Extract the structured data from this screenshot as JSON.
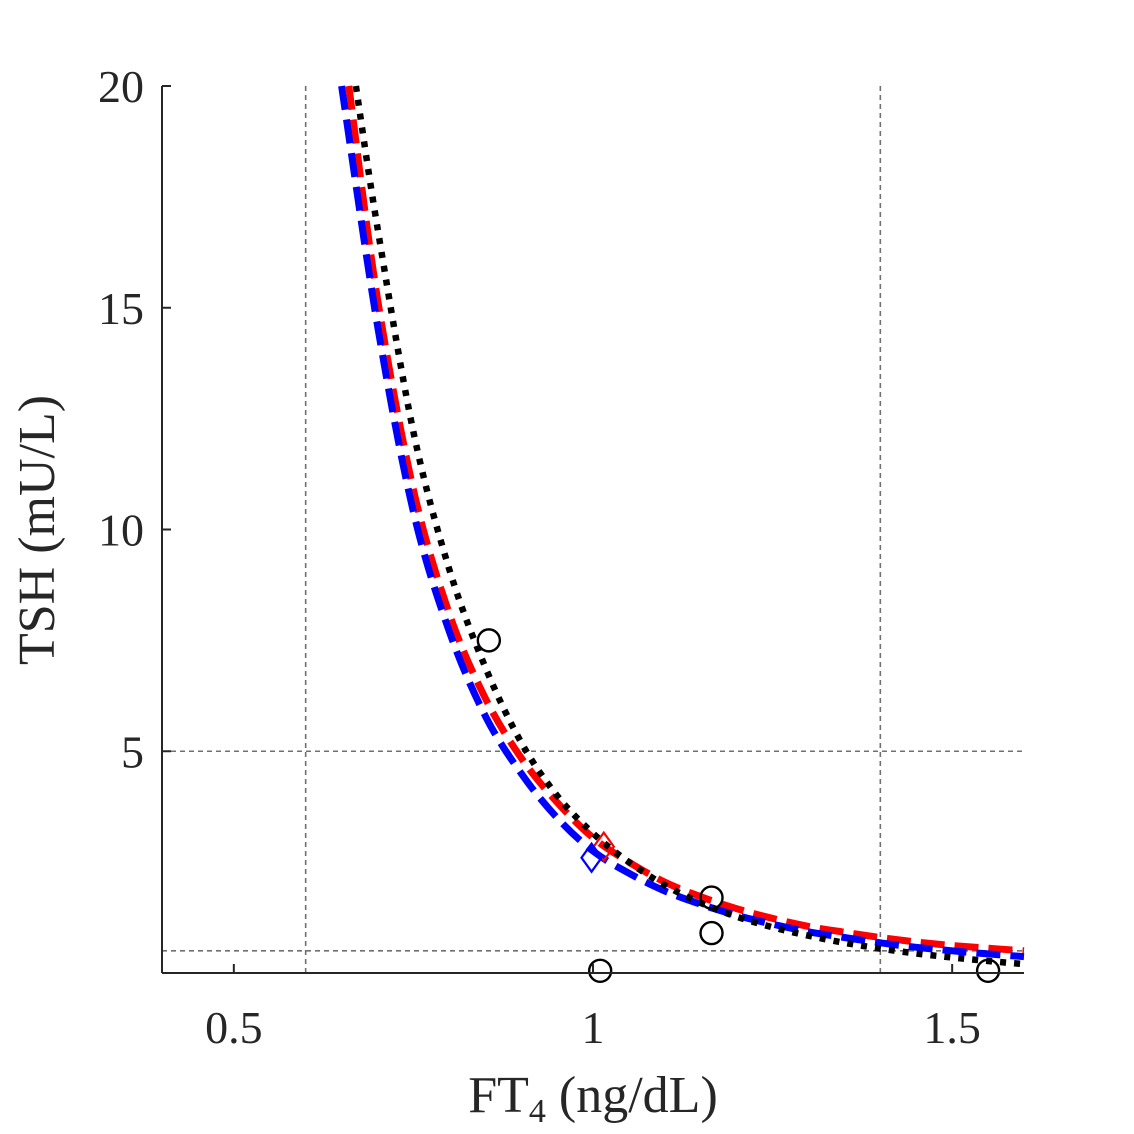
{
  "chart_data": {
    "type": "line",
    "title": "",
    "xlabel": "FT",
    "xlabel_subscript": "4",
    "xlabel_units": "(ng/dL)",
    "ylabel": "TSH (mU/L)",
    "xlim": [
      0.4,
      1.6
    ],
    "ylim": [
      0,
      20
    ],
    "xticks": [
      0.5,
      1,
      1.5
    ],
    "xtick_labels": [
      "0.5",
      "1",
      "1.5"
    ],
    "yticks": [
      5,
      10,
      15,
      20
    ],
    "ytick_labels": [
      "5",
      "10",
      "15",
      "20"
    ],
    "reference_lines": {
      "vertical": [
        0.6,
        1.4
      ],
      "horizontal": [
        0.5,
        5
      ]
    },
    "series": [
      {
        "name": "red-dashed-fit",
        "color": "#ff0000",
        "style": "dashed",
        "x": [
          0.66,
          0.7,
          0.75,
          0.8,
          0.85,
          0.9,
          0.95,
          1.0,
          1.05,
          1.1,
          1.15,
          1.2,
          1.25,
          1.3,
          1.35,
          1.4,
          1.45,
          1.5,
          1.55,
          1.6
        ],
        "y": [
          20.0,
          15.2,
          10.9,
          8.1,
          6.2,
          4.85,
          3.85,
          3.05,
          2.5,
          2.05,
          1.72,
          1.45,
          1.23,
          1.05,
          0.92,
          0.8,
          0.7,
          0.62,
          0.56,
          0.5
        ]
      },
      {
        "name": "blue-dashed-fit",
        "color": "#0000ff",
        "style": "dashed",
        "x": [
          0.65,
          0.7,
          0.75,
          0.8,
          0.85,
          0.9,
          0.95,
          1.0,
          1.05,
          1.1,
          1.15,
          1.2,
          1.25,
          1.3,
          1.35,
          1.4,
          1.45,
          1.5,
          1.55,
          1.6
        ],
        "y": [
          20.0,
          14.6,
          10.4,
          7.7,
          5.8,
          4.5,
          3.5,
          2.75,
          2.25,
          1.85,
          1.55,
          1.3,
          1.1,
          0.93,
          0.8,
          0.68,
          0.58,
          0.5,
          0.43,
          0.37
        ]
      },
      {
        "name": "black-dotted-fit",
        "color": "#000000",
        "style": "dotted",
        "x": [
          0.67,
          0.7,
          0.75,
          0.8,
          0.85,
          0.9,
          0.95,
          1.0,
          1.05,
          1.1,
          1.15,
          1.2,
          1.25,
          1.3,
          1.35,
          1.4,
          1.45,
          1.5,
          1.55,
          1.6
        ],
        "y": [
          20.0,
          16.8,
          12.2,
          9.1,
          6.9,
          5.2,
          4.0,
          3.15,
          2.5,
          1.98,
          1.58,
          1.27,
          1.03,
          0.84,
          0.68,
          0.55,
          0.44,
          0.35,
          0.27,
          0.2
        ]
      }
    ],
    "observations": {
      "marker": "circle",
      "color": "#000000",
      "x": [
        0.855,
        1.01,
        1.165,
        1.165,
        1.55
      ],
      "y": [
        7.5,
        0.05,
        1.7,
        0.9,
        0.05
      ]
    },
    "setpoints": [
      {
        "name": "red-setpoint",
        "marker": "diamond",
        "color": "#ff0000",
        "x": 1.015,
        "y": 2.85
      },
      {
        "name": "blue-setpoint",
        "marker": "diamond",
        "color": "#0000ff",
        "x": 0.998,
        "y": 2.6
      }
    ]
  }
}
